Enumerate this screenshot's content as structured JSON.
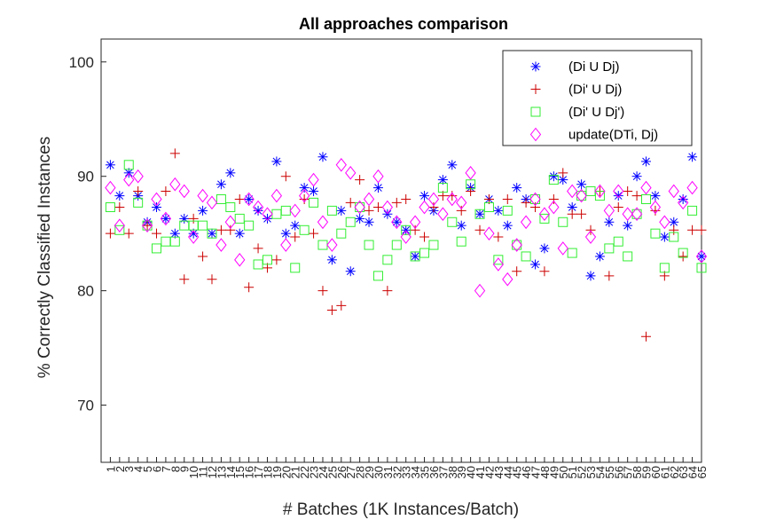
{
  "chart_data": {
    "type": "scatter",
    "title": "All approaches comparison",
    "xlabel": "# Batches (1K Instances/Batch)",
    "ylabel": "% Correctly Classified Instances",
    "xlim": [
      0,
      65
    ],
    "ylim": [
      65,
      102
    ],
    "yticks": [
      70,
      80,
      90,
      100
    ],
    "xticks": [
      1,
      2,
      3,
      4,
      5,
      6,
      7,
      8,
      9,
      10,
      11,
      12,
      13,
      14,
      15,
      16,
      17,
      18,
      19,
      20,
      21,
      22,
      23,
      24,
      25,
      26,
      27,
      28,
      29,
      30,
      31,
      32,
      33,
      34,
      35,
      36,
      37,
      38,
      39,
      40,
      41,
      42,
      43,
      44,
      45,
      46,
      47,
      48,
      49,
      50,
      51,
      52,
      53,
      54,
      55,
      56,
      57,
      58,
      59,
      60,
      61,
      62,
      63,
      64,
      65
    ],
    "xtick_labels": [
      "1",
      "2",
      "3",
      "4",
      "5",
      "6",
      "7",
      "8",
      "9",
      "10",
      "11",
      "12",
      "13",
      "14",
      "15",
      "16",
      "17",
      "18",
      "19",
      "20",
      "21",
      "22",
      "23",
      "24",
      "25",
      "26",
      "27",
      "28",
      "29",
      "30",
      "31",
      "32",
      "33",
      "34",
      "35",
      "36",
      "37",
      "38",
      "39",
      "40",
      "41",
      "42",
      "43",
      "44",
      "45",
      "46",
      "47",
      "48",
      "49",
      "50",
      "51",
      "52",
      "53",
      "54",
      "55",
      "56",
      "57",
      "58",
      "59",
      "60",
      "61",
      "62",
      "63",
      "64",
      "65"
    ],
    "grid": false,
    "legend_position": "top-right",
    "series": [
      {
        "name": "(Di U Dj)",
        "marker": "asterisk",
        "color": "#0000ff",
        "values": [
          91.0,
          88.3,
          90.3,
          88.3,
          86.0,
          87.3,
          86.3,
          85.0,
          86.3,
          85.0,
          87.0,
          85.0,
          89.3,
          90.3,
          85.0,
          88.0,
          87.0,
          86.3,
          91.3,
          85.0,
          85.7,
          89.0,
          88.7,
          91.7,
          82.7,
          87.0,
          81.7,
          86.3,
          86.0,
          89.0,
          86.7,
          86.0,
          85.3,
          83.0,
          88.3,
          87.0,
          89.7,
          91.0,
          85.7,
          89.0,
          86.7,
          88.0,
          87.0,
          85.7,
          89.0,
          88.0,
          82.3,
          83.7,
          90.0,
          89.7,
          87.3,
          89.3,
          81.3,
          83.0,
          86.0,
          88.3,
          85.7,
          90.0,
          91.3,
          88.3,
          84.7,
          86.0,
          88.0,
          91.7,
          83.0
        ]
      },
      {
        "name": "(Di' U Dj)",
        "marker": "plus",
        "color": "#cc0000",
        "values": [
          85.0,
          87.3,
          85.0,
          88.7,
          85.7,
          85.0,
          88.7,
          92.0,
          81.0,
          86.3,
          83.0,
          81.0,
          85.3,
          85.3,
          88.0,
          80.3,
          83.7,
          82.0,
          82.7,
          90.0,
          84.7,
          88.0,
          85.0,
          80.0,
          78.3,
          78.7,
          87.7,
          89.7,
          87.0,
          87.3,
          80.0,
          87.7,
          88.0,
          85.3,
          84.7,
          87.3,
          88.3,
          88.3,
          87.0,
          88.7,
          85.3,
          88.0,
          84.7,
          88.0,
          81.7,
          87.7,
          87.3,
          81.7,
          88.0,
          90.3,
          86.7,
          86.7,
          85.3,
          88.7,
          81.3,
          87.3,
          88.7,
          88.3,
          76.0,
          87.0,
          81.3,
          85.3,
          83.0,
          85.3,
          85.3
        ]
      },
      {
        "name": "(Di' U Dj')",
        "marker": "square",
        "color": "#33ee33",
        "values": [
          87.3,
          85.3,
          91.0,
          87.7,
          85.7,
          83.7,
          84.3,
          84.3,
          85.7,
          85.7,
          85.7,
          85.0,
          88.0,
          87.3,
          86.3,
          85.7,
          82.3,
          82.7,
          86.7,
          87.0,
          82.0,
          85.3,
          87.7,
          84.0,
          87.0,
          85.0,
          86.0,
          87.3,
          84.0,
          81.3,
          82.7,
          84.0,
          85.3,
          83.0,
          83.3,
          84.0,
          89.0,
          86.0,
          84.3,
          89.3,
          86.7,
          87.3,
          82.7,
          87.0,
          84.0,
          83.0,
          88.0,
          86.3,
          89.7,
          86.0,
          83.3,
          88.3,
          88.7,
          88.3,
          83.7,
          84.3,
          83.0,
          86.7,
          88.0,
          85.0,
          82.0,
          84.7,
          83.3,
          87.0,
          82.0
        ]
      },
      {
        "name": "update(DTi, Dj)",
        "marker": "diamond",
        "color": "#ff00ff",
        "values": [
          89.0,
          85.7,
          89.7,
          90.0,
          85.7,
          88.0,
          86.3,
          89.3,
          88.7,
          84.7,
          88.3,
          87.7,
          84.0,
          86.0,
          82.7,
          88.0,
          87.3,
          86.7,
          88.3,
          84.0,
          87.0,
          88.3,
          89.7,
          86.0,
          84.0,
          91.0,
          90.3,
          87.3,
          88.0,
          90.0,
          87.3,
          86.0,
          84.7,
          86.0,
          87.3,
          88.0,
          86.7,
          88.0,
          87.7,
          90.3,
          80.0,
          85.0,
          82.3,
          81.0,
          84.0,
          86.0,
          88.0,
          86.7,
          87.3,
          83.7,
          88.7,
          88.3,
          84.7,
          88.7,
          87.0,
          88.7,
          86.7,
          86.7,
          89.0,
          87.3,
          86.0,
          88.7,
          87.7,
          89.0,
          83.0
        ]
      }
    ]
  }
}
